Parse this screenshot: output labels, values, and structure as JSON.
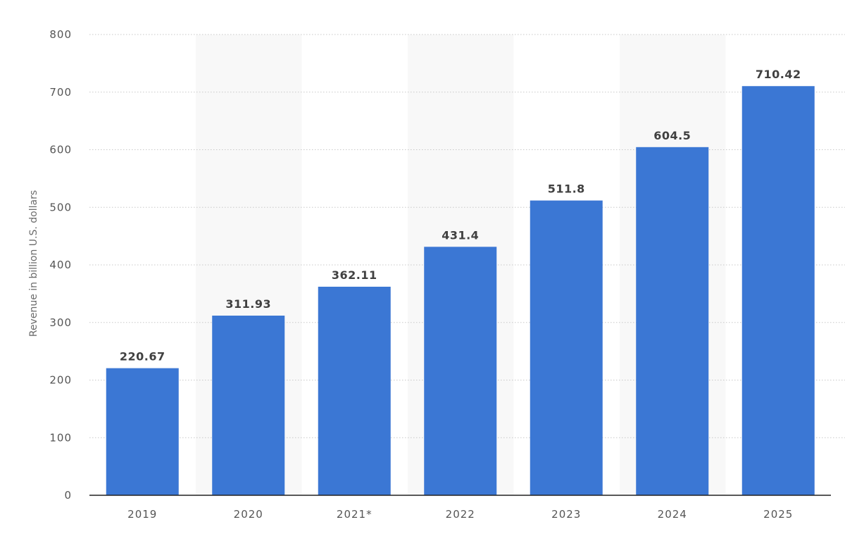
{
  "chart_data": {
    "type": "bar",
    "categories": [
      "2019",
      "2020",
      "2021*",
      "2022",
      "2023",
      "2024",
      "2025"
    ],
    "values": [
      220.67,
      311.93,
      362.11,
      431.4,
      511.8,
      604.5,
      710.42
    ],
    "value_labels": [
      "220.67",
      "311.93",
      "362.11",
      "431.4",
      "511.8",
      "604.5",
      "710.42"
    ],
    "ylabel": "Revenue in billion U.S. dollars",
    "xlabel": "",
    "ylim": [
      0,
      800
    ],
    "yticks": [
      0,
      100,
      200,
      300,
      400,
      500,
      600,
      700,
      800
    ],
    "grid": true,
    "alternating_bands": true,
    "bar_color": "#3b77d4",
    "band_color": "#f8f8f8"
  }
}
